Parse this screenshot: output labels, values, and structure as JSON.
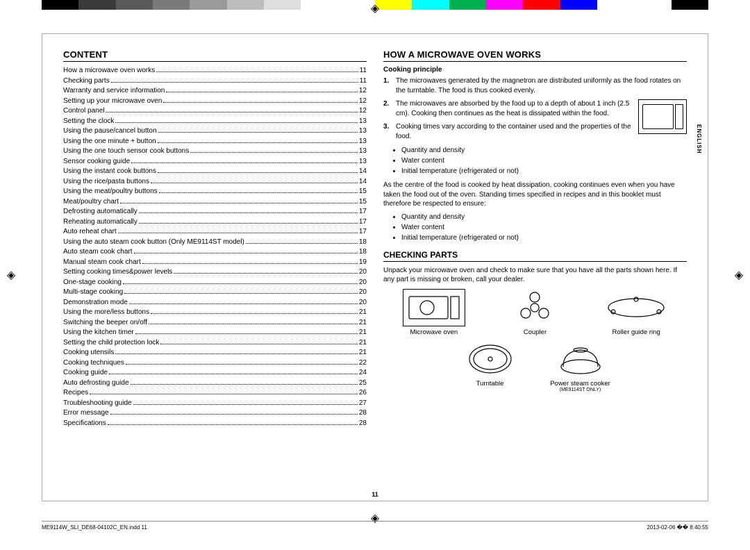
{
  "colorBar": [
    "#000000",
    "#3a3a3a",
    "#5a5a5a",
    "#7a7a7a",
    "#9a9a9a",
    "#bcbcbc",
    "#dedede",
    "#ffffff",
    "#ffffff",
    "#ffff00",
    "#00ffff",
    "#00b050",
    "#ff00ff",
    "#ff0000",
    "#0000ff",
    "#ffffff",
    "#ffffff",
    "#000000"
  ],
  "headings": {
    "content": "CONTENT",
    "howWorks": "HOW A MICROWAVE OVEN WORKS",
    "checking": "CHECKING PARTS",
    "cookingPrinciple": "Cooking principle",
    "sideLang": "ENGLISH"
  },
  "toc": [
    {
      "t": "How a microwave oven works",
      "p": "11"
    },
    {
      "t": "Checking parts",
      "p": "11"
    },
    {
      "t": "Warranty and service information",
      "p": "12"
    },
    {
      "t": "Setting up your microwave oven",
      "p": "12"
    },
    {
      "t": "Control panel",
      "p": "12"
    },
    {
      "t": "Setting the clock",
      "p": "13"
    },
    {
      "t": "Using the pause/cancel button",
      "p": "13"
    },
    {
      "t": "Using the one minute + button",
      "p": "13"
    },
    {
      "t": "Using the one touch sensor cook buttons",
      "p": "13"
    },
    {
      "t": "Sensor cooking guide",
      "p": "13"
    },
    {
      "t": "Using the instant cook buttons",
      "p": "14"
    },
    {
      "t": "Using the rice/pasta buttons",
      "p": "14"
    },
    {
      "t": "Using the meat/poultry buttons",
      "p": "15"
    },
    {
      "t": "Meat/poultry chart",
      "p": "15"
    },
    {
      "t": "Defrosting automatically",
      "p": "17"
    },
    {
      "t": "Reheating automatically",
      "p": "17"
    },
    {
      "t": "Auto reheat chart",
      "p": "17"
    },
    {
      "t": "Using the auto steam cook button (Only ME9114ST model)",
      "p": "18"
    },
    {
      "t": "Auto steam cook chart",
      "p": "18"
    },
    {
      "t": "Manual steam cook chart",
      "p": "19"
    },
    {
      "t": "Setting cooking times&power levels",
      "p": "20"
    },
    {
      "t": "One-stage cooking",
      "p": "20"
    },
    {
      "t": "Multi-stage cooking",
      "p": "20"
    },
    {
      "t": "Demonstration mode",
      "p": "20"
    },
    {
      "t": "Using the more/less buttons",
      "p": "21"
    },
    {
      "t": "Switching the beeper on/off",
      "p": "21"
    },
    {
      "t": "Using the kitchen timer",
      "p": "21"
    },
    {
      "t": "Setting the child protection lock",
      "p": "21"
    },
    {
      "t": "Cooking utensils",
      "p": "21"
    },
    {
      "t": "Cooking techniques",
      "p": "22"
    },
    {
      "t": "Cooking guide",
      "p": "24"
    },
    {
      "t": "Auto defrosting guide",
      "p": "25"
    },
    {
      "t": "Recipes",
      "p": "26"
    },
    {
      "t": "Troubleshooting guide",
      "p": "27"
    },
    {
      "t": "Error message",
      "p": "28"
    },
    {
      "t": "Specifications",
      "p": "28"
    }
  ],
  "principles": {
    "items": [
      "The microwaves generated by the magnetron are distributed uniformly as the food rotates on the turntable. The food is thus cooked evenly.",
      "The microwaves are absorbed by the food up to a depth of about 1 inch (2.5 cm). Cooking then continues as the heat is dissipated within the food.",
      "Cooking times vary according to the container used and the properties of the food."
    ],
    "bulletsA": [
      "Quantity and density",
      "Water content",
      "Initial temperature (refrigerated or not)"
    ],
    "between": "As the centre of the food is cooked by heat dissipation, cooking continues even when you have taken the food out of the oven. Standing times specified in recipes and in this booklet must therefore be respected to ensure:",
    "bulletsB": [
      "Quantity and density",
      "Water content",
      "Initial temperature (refrigerated or not)"
    ]
  },
  "checking": {
    "intro": "Unpack your microwave oven and check to make sure that you have all the parts shown here. If any part is missing or broken, call your dealer.",
    "row1": [
      {
        "label": "Microwave oven"
      },
      {
        "label": "Coupler"
      },
      {
        "label": "Roller guide ring"
      }
    ],
    "row2": [
      {
        "label": "Turntable"
      },
      {
        "label": "Power steam cooker",
        "sub": "(ME9114ST ONLY)"
      }
    ]
  },
  "pageNumber": "11",
  "footer": {
    "left": "ME9114W_SLI_DE68-04102C_EN.indd   11",
    "right": "2013-02-06   �� 8:40:55"
  }
}
